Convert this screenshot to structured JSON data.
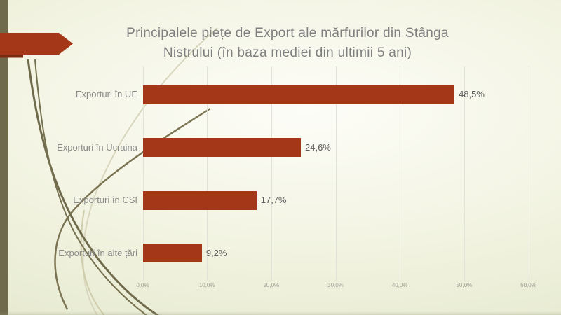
{
  "slide": {
    "title_lines": [
      "Principalele piețe de Export ale mărfurilor din Stânga",
      "Nistrului (în baza mediei din ultimii 5 ani)"
    ]
  },
  "chart_data": {
    "type": "bar",
    "orientation": "horizontal",
    "title": "Principalele piețe de Export ale mărfurilor din Stânga Nistrului (în baza mediei din ultimii 5 ani)",
    "categories": [
      "Exporturi în UE",
      "Exporturi în Ucraina",
      "Exporturi în CSI",
      "Exporturi în alte țări"
    ],
    "values": [
      48.5,
      24.6,
      17.7,
      9.2
    ],
    "value_labels": [
      "48,5%",
      "24,6%",
      "17,7%",
      "9,2%"
    ],
    "x_ticks": [
      "0,0%",
      "10,0%",
      "20,0%",
      "30,0%",
      "40,0%",
      "50,0%",
      "60,0%"
    ],
    "x_tick_values": [
      0,
      10,
      20,
      30,
      40,
      50,
      60
    ],
    "xlim": [
      0,
      60
    ],
    "xlabel": "",
    "ylabel": "",
    "grid": true,
    "legend": false
  },
  "colors": {
    "bar": "#a43718",
    "accent_arrow": "#a43718",
    "accent_arrow_shadow": "#7b2a12",
    "left_band": "#6f6a4b",
    "curve_dark": "#6f6a4b",
    "curve_light": "#cfccab",
    "title_text": "#7f7f7f",
    "category_text": "#8a8a8a",
    "value_text": "#595959",
    "tick_text": "#a0a096",
    "gridline": "#e1e2d8"
  }
}
